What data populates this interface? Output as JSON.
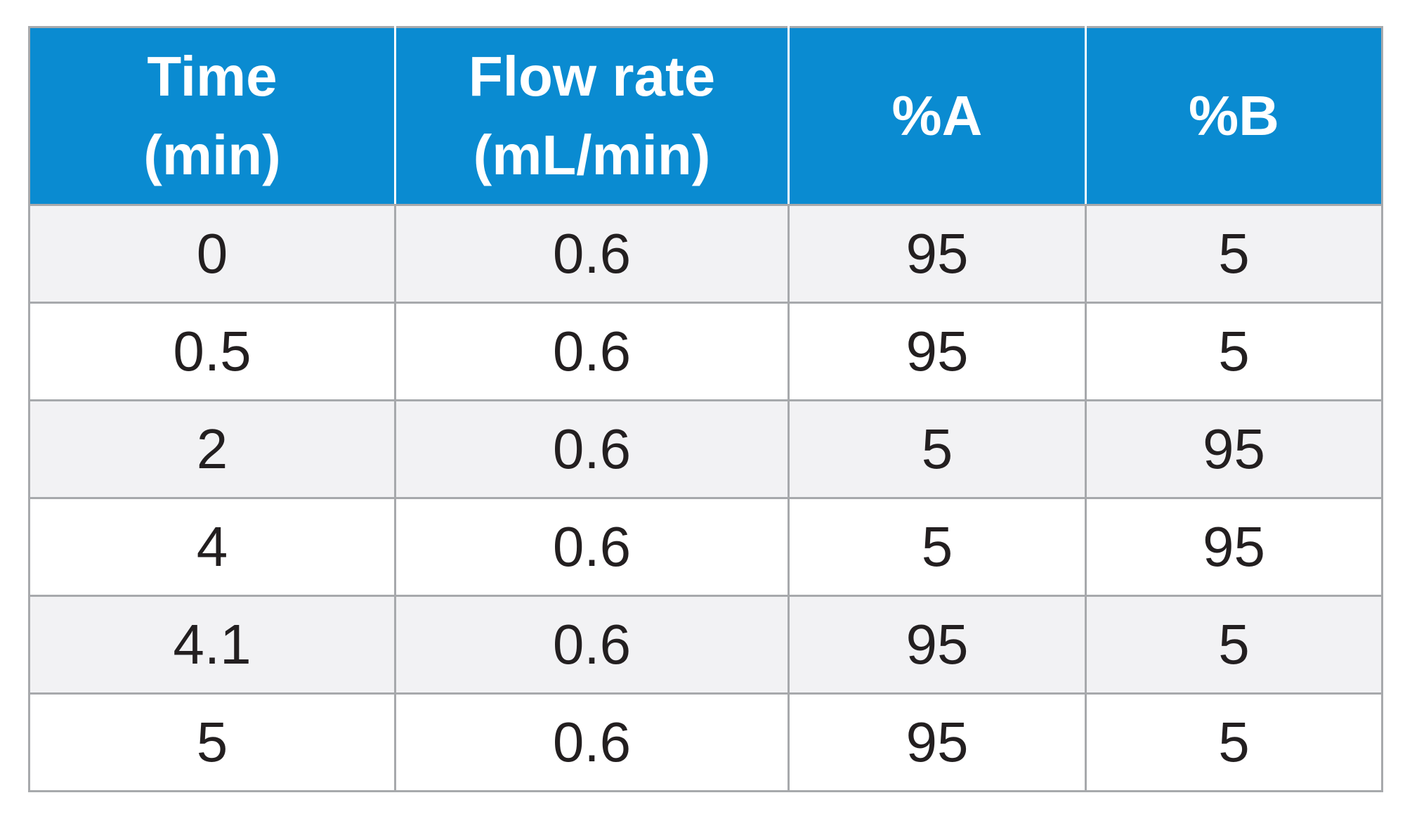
{
  "table": {
    "headers": [
      {
        "line1": "Time",
        "line2": "(min)"
      },
      {
        "line1": "Flow rate",
        "line2": "(mL/min)"
      },
      {
        "line1": "%A",
        "line2": ""
      },
      {
        "line1": "%B",
        "line2": ""
      }
    ],
    "rows": [
      [
        "0",
        "0.6",
        "95",
        "5"
      ],
      [
        "0.5",
        "0.6",
        "95",
        "5"
      ],
      [
        "2",
        "0.6",
        "5",
        "95"
      ],
      [
        "4",
        "0.6",
        "5",
        "95"
      ],
      [
        "4.1",
        "0.6",
        "95",
        "5"
      ],
      [
        "5",
        "0.6",
        "95",
        "5"
      ]
    ]
  },
  "colors": {
    "header_bg": "#0a8bd1",
    "header_text": "#ffffff",
    "row_alt_bg": "#f2f2f4",
    "row_bg": "#ffffff",
    "border": "#a7a9ac",
    "cell_text": "#231f20"
  }
}
